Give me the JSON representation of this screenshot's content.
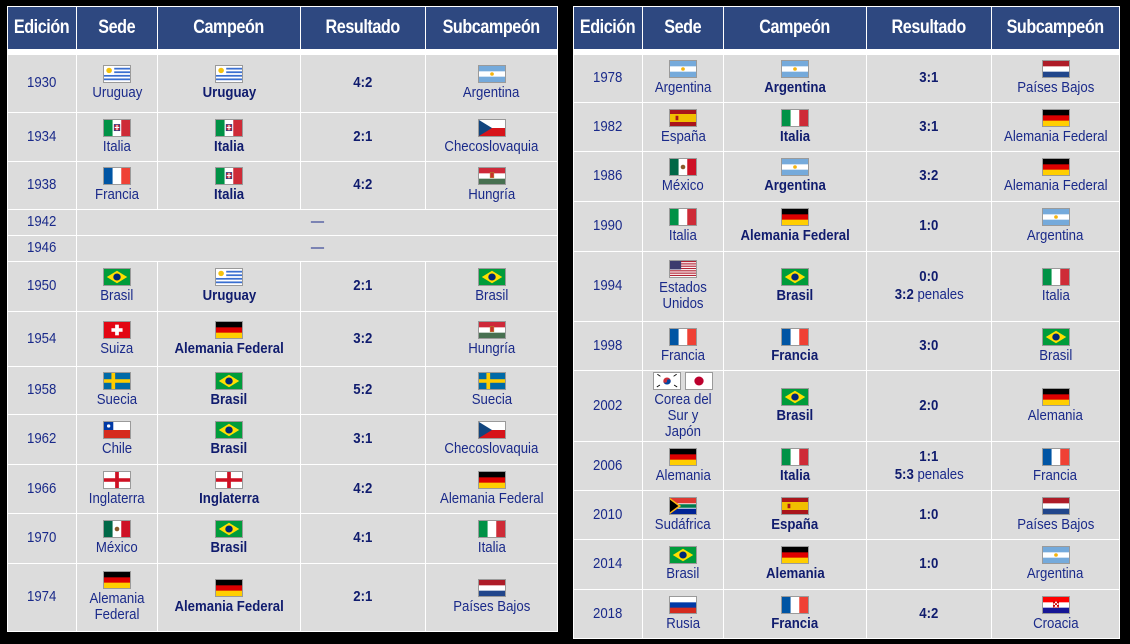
{
  "headers": [
    "Edición",
    "Sede",
    "Campeón",
    "Resultado",
    "Subcampeón"
  ],
  "colors": {
    "header_bg": "#2e4880",
    "cell_bg": "#dcdcdc",
    "text": "#1a2a8a"
  },
  "left_rows": [
    {
      "year": "1930",
      "host": "Uruguay",
      "host_flags": [
        "uruguay"
      ],
      "champion": "Uruguay",
      "champion_flag": "uruguay",
      "result": "4:2",
      "runner": "Argentina",
      "runner_flag": "argentina"
    },
    {
      "year": "1934",
      "host": "Italia",
      "host_flags": [
        "italy-royal"
      ],
      "champion": "Italia",
      "champion_flag": "italy-royal",
      "result": "2:1",
      "runner": "Checoslovaquia",
      "runner_flag": "czech"
    },
    {
      "year": "1938",
      "host": "Francia",
      "host_flags": [
        "france"
      ],
      "champion": "Italia",
      "champion_flag": "italy-royal",
      "result": "4:2",
      "runner": "Hungría",
      "runner_flag": "hungary-crest"
    },
    {
      "year": "1942",
      "empty": true,
      "dash": "—"
    },
    {
      "year": "1946",
      "empty": true,
      "dash": "—"
    },
    {
      "year": "1950",
      "host": "Brasil",
      "host_flags": [
        "brazil"
      ],
      "champion": "Uruguay",
      "champion_flag": "uruguay",
      "result": "2:1",
      "runner": "Brasil",
      "runner_flag": "brazil"
    },
    {
      "year": "1954",
      "host": "Suiza",
      "host_flags": [
        "switzerland"
      ],
      "champion": "Alemania Federal",
      "champion_flag": "germany",
      "result": "3:2",
      "runner": "Hungría",
      "runner_flag": "hungary-crest"
    },
    {
      "year": "1958",
      "host": "Suecia",
      "host_flags": [
        "sweden"
      ],
      "champion": "Brasil",
      "champion_flag": "brazil",
      "result": "5:2",
      "runner": "Suecia",
      "runner_flag": "sweden"
    },
    {
      "year": "1962",
      "host": "Chile",
      "host_flags": [
        "chile"
      ],
      "champion": "Brasil",
      "champion_flag": "brazil",
      "result": "3:1",
      "runner": "Checoslovaquia",
      "runner_flag": "czech"
    },
    {
      "year": "1966",
      "host": "Inglaterra",
      "host_flags": [
        "england"
      ],
      "champion": "Inglaterra",
      "champion_flag": "england",
      "result": "4:2",
      "runner": "Alemania Federal",
      "runner_flag": "germany"
    },
    {
      "year": "1970",
      "host": "México",
      "host_flags": [
        "mexico"
      ],
      "champion": "Brasil",
      "champion_flag": "brazil",
      "result": "4:1",
      "runner": "Italia",
      "runner_flag": "italy"
    },
    {
      "year": "1974",
      "host": "Alemania Federal",
      "host_flags": [
        "germany"
      ],
      "champion": "Alemania Federal",
      "champion_flag": "germany",
      "result": "2:1",
      "runner": "Países Bajos",
      "runner_flag": "netherlands"
    }
  ],
  "right_rows": [
    {
      "year": "1978",
      "host": "Argentina",
      "host_flags": [
        "argentina"
      ],
      "champion": "Argentina",
      "champion_flag": "argentina",
      "result": "3:1",
      "runner": "Países Bajos",
      "runner_flag": "netherlands"
    },
    {
      "year": "1982",
      "host": "España",
      "host_flags": [
        "spain"
      ],
      "champion": "Italia",
      "champion_flag": "italy",
      "result": "3:1",
      "runner": "Alemania Federal",
      "runner_flag": "germany"
    },
    {
      "year": "1986",
      "host": "México",
      "host_flags": [
        "mexico"
      ],
      "champion": "Argentina",
      "champion_flag": "argentina",
      "result": "3:2",
      "runner": "Alemania Federal",
      "runner_flag": "germany"
    },
    {
      "year": "1990",
      "host": "Italia",
      "host_flags": [
        "italy"
      ],
      "champion": "Alemania Federal",
      "champion_flag": "germany",
      "result": "1:0",
      "runner": "Argentina",
      "runner_flag": "argentina"
    },
    {
      "year": "1994",
      "host": "Estados Unidos",
      "host_flags": [
        "usa"
      ],
      "champion": "Brasil",
      "champion_flag": "brazil",
      "result": "0:0",
      "penalties": "3:2",
      "pen_word": "penales",
      "runner": "Italia",
      "runner_flag": "italy"
    },
    {
      "year": "1998",
      "host": "Francia",
      "host_flags": [
        "france"
      ],
      "champion": "Francia",
      "champion_flag": "france",
      "result": "3:0",
      "runner": "Brasil",
      "runner_flag": "brazil"
    },
    {
      "year": "2002",
      "host": "Corea del Sur y Japón",
      "host_flags": [
        "korea",
        "japan"
      ],
      "champion": "Brasil",
      "champion_flag": "brazil",
      "result": "2:0",
      "runner": "Alemania",
      "runner_flag": "germany"
    },
    {
      "year": "2006",
      "host": "Alemania",
      "host_flags": [
        "germany"
      ],
      "champion": "Italia",
      "champion_flag": "italy",
      "result": "1:1",
      "penalties": "5:3",
      "pen_word": "penales",
      "runner": "Francia",
      "runner_flag": "france"
    },
    {
      "year": "2010",
      "host": "Sudáfrica",
      "host_flags": [
        "south-africa"
      ],
      "champion": "España",
      "champion_flag": "spain",
      "result": "1:0",
      "runner": "Países Bajos",
      "runner_flag": "netherlands"
    },
    {
      "year": "2014",
      "host": "Brasil",
      "host_flags": [
        "brazil"
      ],
      "champion": "Alemania",
      "champion_flag": "germany",
      "result": "1:0",
      "runner": "Argentina",
      "runner_flag": "argentina"
    },
    {
      "year": "2018",
      "host": "Rusia",
      "host_flags": [
        "russia"
      ],
      "champion": "Francia",
      "champion_flag": "france",
      "result": "4:2",
      "runner": "Croacia",
      "runner_flag": "croatia"
    }
  ]
}
